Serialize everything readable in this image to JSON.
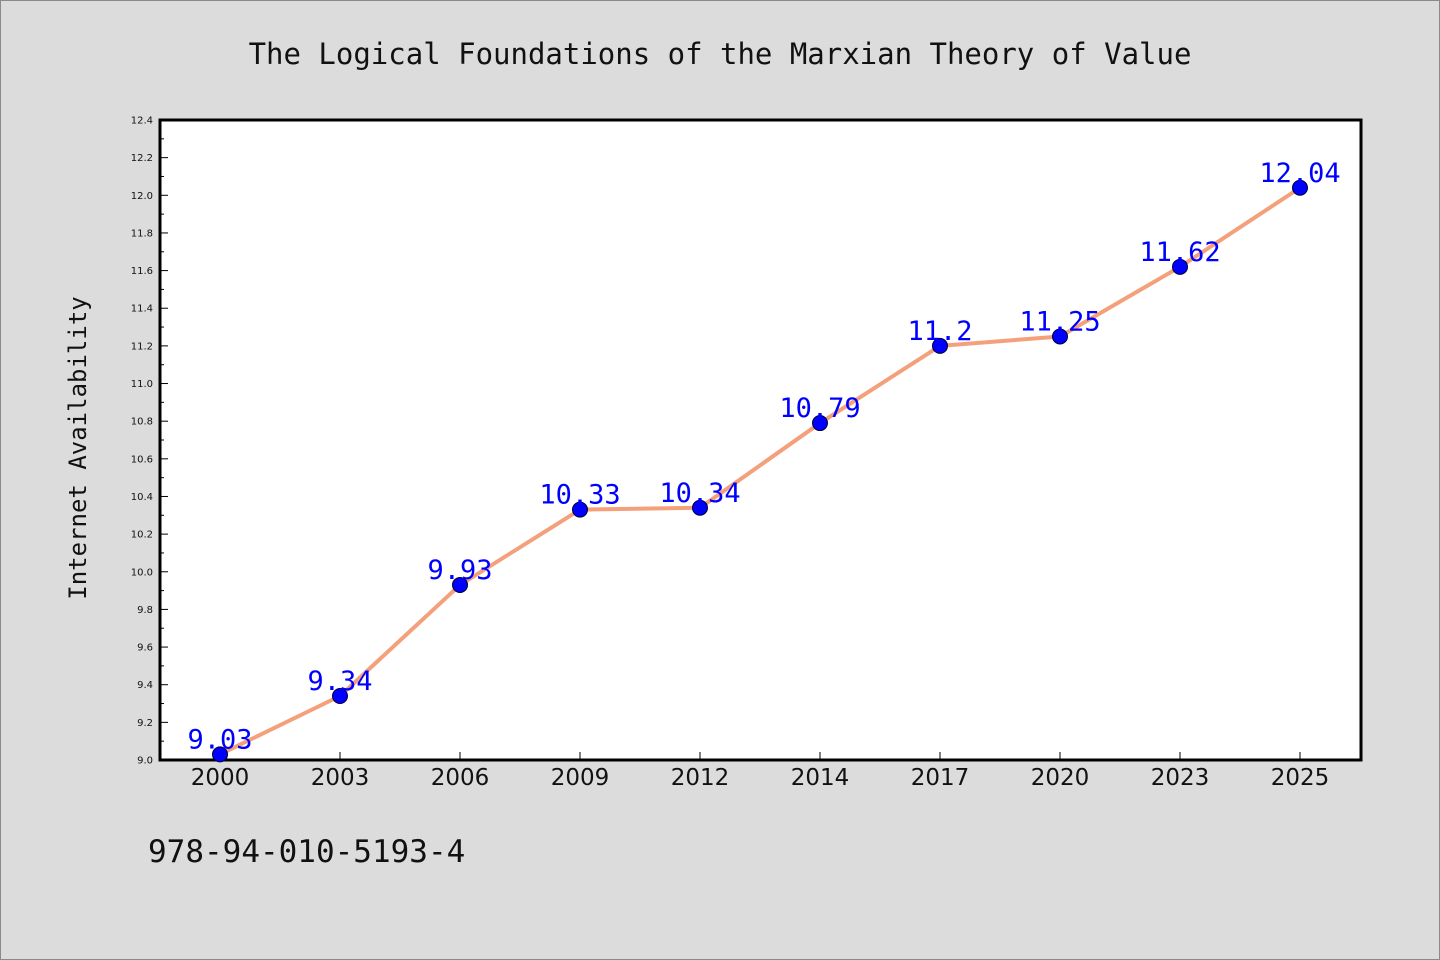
{
  "chart_data": {
    "type": "line",
    "title": "The Logical Foundations of the Marxian Theory of Value",
    "xlabel": "",
    "ylabel": "Internet Availability",
    "categories": [
      "2000",
      "2003",
      "2006",
      "2009",
      "2012",
      "2014",
      "2017",
      "2020",
      "2023",
      "2025"
    ],
    "series": [
      {
        "values": [
          9.03,
          9.34,
          9.93,
          10.33,
          10.34,
          10.79,
          11.2,
          11.25,
          11.62,
          12.04
        ],
        "labels": [
          "9.03",
          "9.34",
          "9.93",
          "10.33",
          "10.34",
          "10.79",
          "11.2",
          "11.25",
          "11.62",
          "12.04"
        ],
        "line_color": "#f4a07a",
        "marker_color": "#0000ff",
        "label_color": "#0000ff"
      }
    ],
    "ylim": [
      9.0,
      12.4
    ],
    "yticks": [
      "9.0",
      "9.2",
      "9.4",
      "9.6",
      "9.8",
      "10.0",
      "10.2",
      "10.4",
      "10.6",
      "10.8",
      "11.0",
      "11.2",
      "11.4",
      "11.6",
      "11.8",
      "12.0",
      "12.2",
      "12.4"
    ],
    "grid": false,
    "legend": "none"
  },
  "footer": {
    "isbn": "978-94-010-5193-4"
  }
}
